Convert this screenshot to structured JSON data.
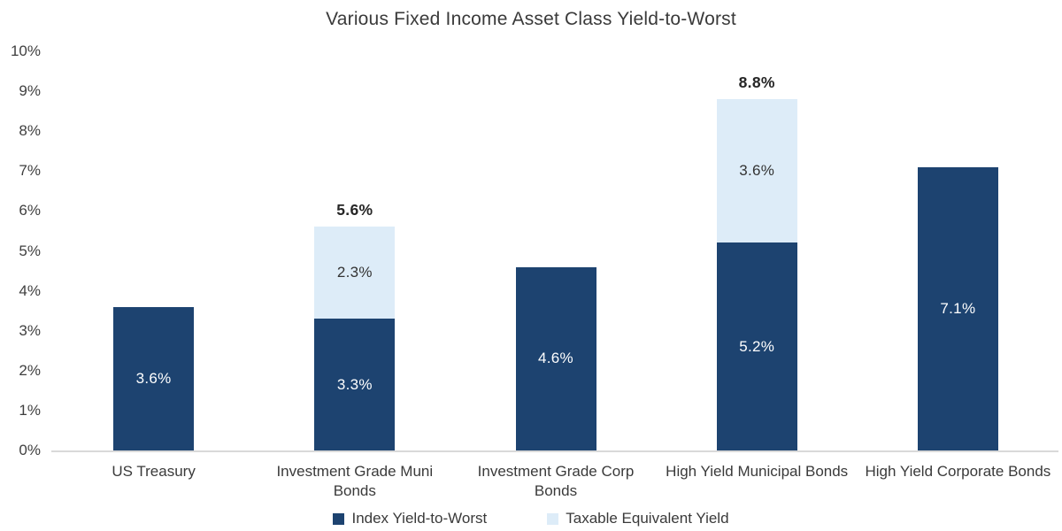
{
  "chart_data": {
    "type": "bar",
    "stacked": true,
    "title": "Various Fixed Income Asset Class Yield-to-Worst",
    "categories": [
      "US Treasury",
      "Investment Grade Muni Bonds",
      "Investment Grade Corp Bonds",
      "High Yield Municipal Bonds",
      "High Yield Corporate Bonds"
    ],
    "series": [
      {
        "name": "Index Yield-to-Worst",
        "color": "#1d4370",
        "label_color": "#ffffff",
        "values": [
          3.6,
          3.3,
          4.6,
          5.2,
          7.1
        ],
        "labels": [
          "3.6%",
          "3.3%",
          "4.6%",
          "5.2%",
          "7.1%"
        ]
      },
      {
        "name": "Taxable Equivalent Yield",
        "color": "#ddecf8",
        "label_color": "#333333",
        "values": [
          0,
          2.3,
          0,
          3.6,
          0
        ],
        "labels": [
          "",
          "2.3%",
          "",
          "3.6%",
          ""
        ]
      }
    ],
    "total_labels": [
      "",
      "5.6%",
      "",
      "8.8%",
      ""
    ],
    "xlabel": "",
    "ylabel": "",
    "ylim": [
      0,
      10
    ],
    "ytick_labels": [
      "0%",
      "1%",
      "2%",
      "3%",
      "4%",
      "5%",
      "6%",
      "7%",
      "8%",
      "9%",
      "10%"
    ],
    "grid": false,
    "legend_position": "bottom",
    "axis_line_color": "#d9d9d9"
  }
}
